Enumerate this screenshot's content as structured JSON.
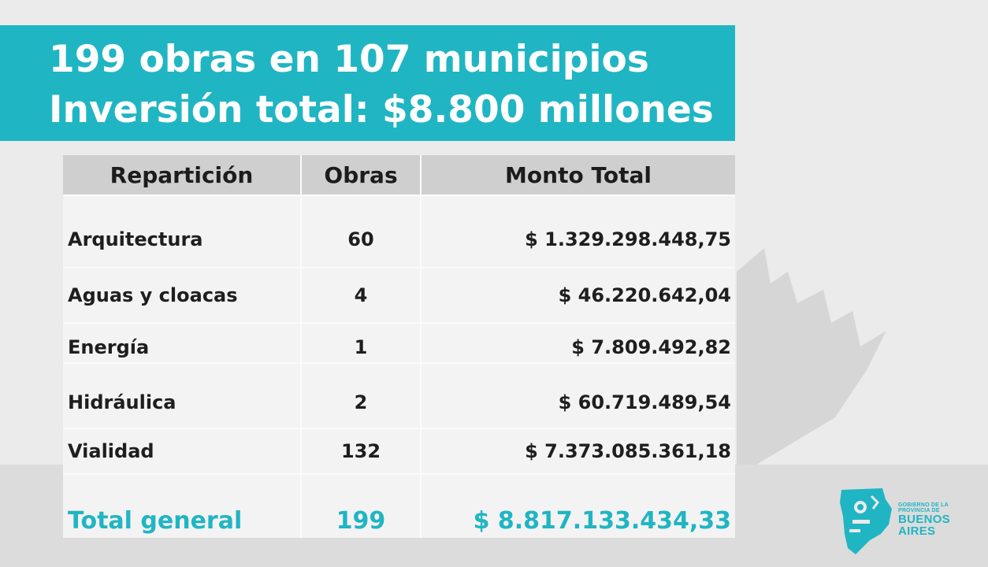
{
  "title": {
    "line1": "199 obras en 107 municipios",
    "line2": "Inversión total: $8.800 millones"
  },
  "table": {
    "headers": [
      "Repartición",
      "Obras",
      "Monto Total"
    ],
    "rows": [
      {
        "reparticion": "Arquitectura",
        "obras": "60",
        "monto": "$ 1.329.298.448,75"
      },
      {
        "reparticion": "Aguas y cloacas",
        "obras": "4",
        "monto": "$ 46.220.642,04"
      },
      {
        "reparticion": "Energía",
        "obras": "1",
        "monto": "$ 7.809.492,82"
      },
      {
        "reparticion": "Hidráulica",
        "obras": "2",
        "monto": "$ 60.719.489,54"
      },
      {
        "reparticion": "Vialidad",
        "obras": "132",
        "monto": "$ 7.373.085.361,18"
      }
    ],
    "total": {
      "label": "Total general",
      "obras": "199",
      "monto": "$ 8.817.133.434,33"
    }
  },
  "logo": {
    "line1": "GOBIERNO DE LA",
    "line2": "PROVINCIA DE",
    "line3": "BUENOS",
    "line4": "AIRES",
    "icon": "province-map-icon"
  },
  "colors": {
    "accent": "#20b5c3",
    "header_bg": "#cfcfcf",
    "table_bg": "#f3f3f3",
    "page_bg": "#ebebeb"
  }
}
